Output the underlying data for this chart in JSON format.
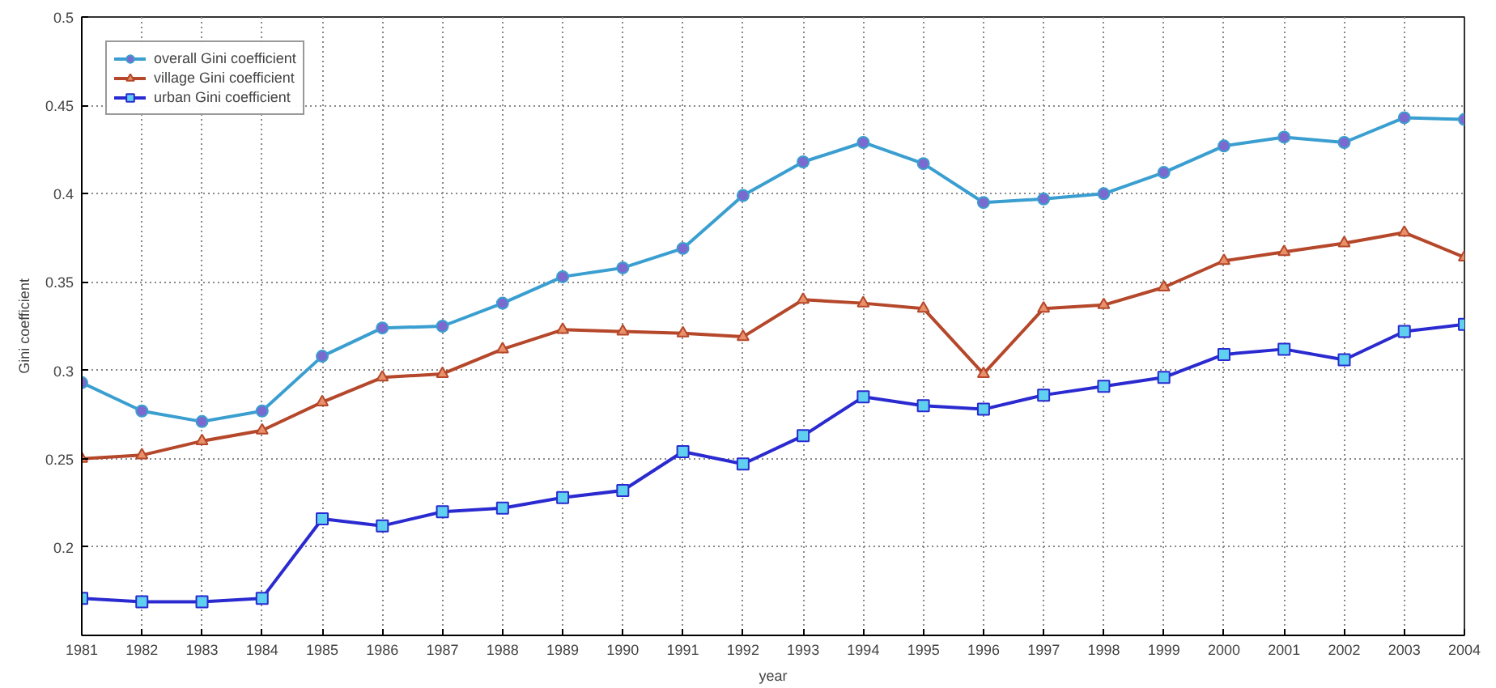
{
  "chart_data": {
    "type": "line",
    "xlabel": "year",
    "ylabel": "Gini coefficient",
    "x": [
      1981,
      1982,
      1983,
      1984,
      1985,
      1986,
      1987,
      1988,
      1989,
      1990,
      1991,
      1992,
      1993,
      1994,
      1995,
      1996,
      1997,
      1998,
      1999,
      2000,
      2001,
      2002,
      2003,
      2004
    ],
    "series": [
      {
        "name": "overall Gini coefficient",
        "color": "#3a9fd0",
        "marker": "circle",
        "values": [
          0.293,
          0.277,
          0.271,
          0.277,
          0.308,
          0.324,
          0.325,
          0.338,
          0.353,
          0.358,
          0.369,
          0.399,
          0.418,
          0.429,
          0.417,
          0.395,
          0.397,
          0.4,
          0.412,
          0.427,
          0.432,
          0.429,
          0.443,
          0.442
        ]
      },
      {
        "name": "village Gini coefficient",
        "color": "#b5472a",
        "marker": "triangle",
        "values": [
          0.25,
          0.252,
          0.26,
          0.266,
          0.282,
          0.296,
          0.298,
          0.312,
          0.323,
          0.322,
          0.321,
          0.319,
          0.34,
          0.338,
          0.335,
          0.298,
          0.335,
          0.337,
          0.347,
          0.362,
          0.367,
          0.372,
          0.378,
          0.364
        ]
      },
      {
        "name": "urban Gini coefficient",
        "color": "#2a2ad0",
        "marker": "square",
        "values": [
          0.171,
          0.169,
          0.169,
          0.171,
          0.216,
          0.212,
          0.22,
          0.222,
          0.228,
          0.232,
          0.254,
          0.247,
          0.263,
          0.285,
          0.28,
          0.278,
          0.286,
          0.291,
          0.296,
          0.309,
          0.312,
          0.306,
          0.322,
          0.326
        ]
      }
    ],
    "xlim": [
      1981,
      2004
    ],
    "ylim": [
      0.15,
      0.5
    ],
    "xticks": [
      1981,
      1982,
      1983,
      1984,
      1985,
      1986,
      1987,
      1988,
      1989,
      1990,
      1991,
      1992,
      1993,
      1994,
      1995,
      1996,
      1997,
      1998,
      1999,
      2000,
      2001,
      2002,
      2003,
      2004
    ],
    "yticks": [
      {
        "value": 0.15,
        "label": null
      },
      0.2,
      0.25,
      0.3,
      0.35,
      0.4,
      0.45,
      0.5
    ],
    "grid": true,
    "legend": "top left",
    "line_style": "solid"
  }
}
